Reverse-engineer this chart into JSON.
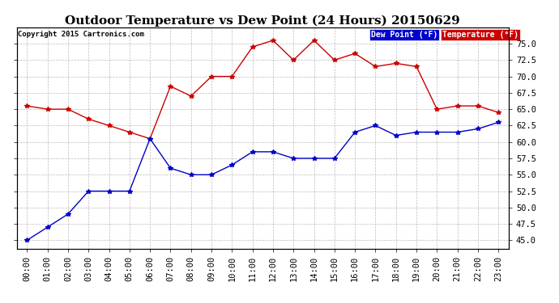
{
  "title": "Outdoor Temperature vs Dew Point (24 Hours) 20150629",
  "copyright": "Copyright 2015 Cartronics.com",
  "hours": [
    "00:00",
    "01:00",
    "02:00",
    "03:00",
    "04:00",
    "05:00",
    "06:00",
    "07:00",
    "08:00",
    "09:00",
    "10:00",
    "11:00",
    "12:00",
    "13:00",
    "14:00",
    "15:00",
    "16:00",
    "17:00",
    "18:00",
    "19:00",
    "20:00",
    "21:00",
    "22:00",
    "23:00"
  ],
  "temperature": [
    65.5,
    65.0,
    65.0,
    63.5,
    62.5,
    61.5,
    60.5,
    68.5,
    67.0,
    70.0,
    70.0,
    74.5,
    75.5,
    72.5,
    75.5,
    72.5,
    73.5,
    71.5,
    72.0,
    71.5,
    65.0,
    65.5,
    65.5,
    64.5
  ],
  "dewpoint": [
    45.0,
    47.0,
    49.0,
    52.5,
    52.5,
    52.5,
    60.5,
    56.0,
    55.0,
    55.0,
    56.5,
    58.5,
    58.5,
    57.5,
    57.5,
    57.5,
    61.5,
    62.5,
    61.0,
    61.5,
    61.5,
    61.5,
    62.0,
    63.0
  ],
  "temp_color": "#cc0000",
  "dew_color": "#0000cc",
  "bg_color": "#ffffff",
  "grid_color": "#bbbbbb",
  "title_fontsize": 11,
  "tick_fontsize": 7.5,
  "ylim": [
    43.75,
    77.5
  ],
  "yticks": [
    45.0,
    47.5,
    50.0,
    52.5,
    55.0,
    57.5,
    60.0,
    62.5,
    65.0,
    67.5,
    70.0,
    72.5,
    75.0
  ],
  "legend_dew_label": "Dew Point (°F)",
  "legend_temp_label": "Temperature (°F)"
}
